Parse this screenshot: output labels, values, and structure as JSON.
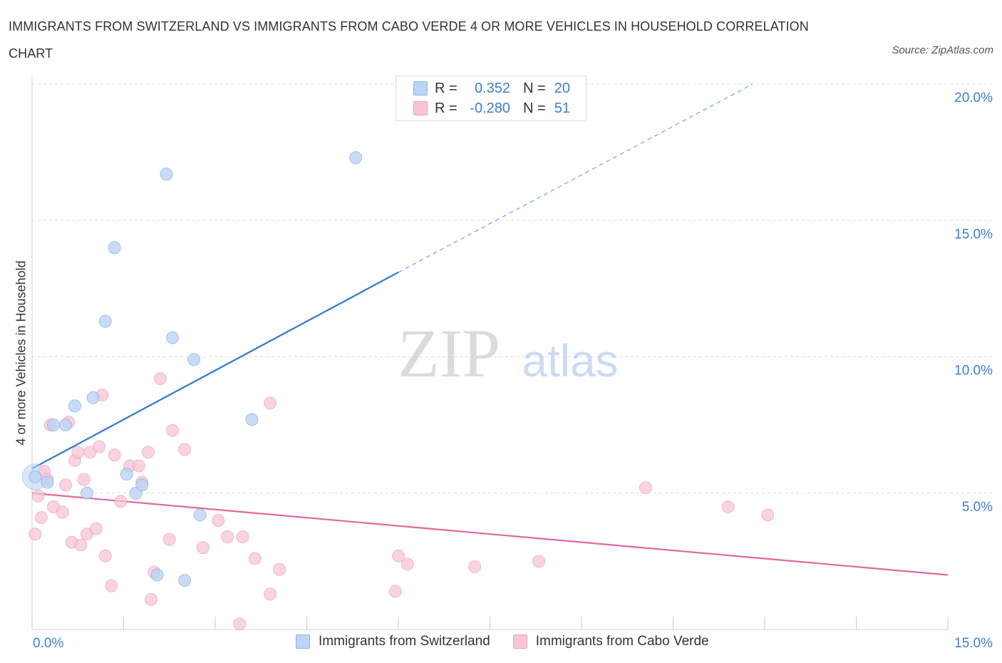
{
  "title": "IMMIGRANTS FROM SWITZERLAND VS IMMIGRANTS FROM CABO VERDE 4 OR MORE VEHICLES IN HOUSEHOLD CORRELATION CHART",
  "source": "Source: ZipAtlas.com",
  "watermark": {
    "zip": "ZIP",
    "atlas": "atlas"
  },
  "colors": {
    "blue_fill": "#bcd4f6",
    "blue_stroke": "#8db3e6",
    "blue_line": "#2f78d0",
    "pink_fill": "#f8c5d4",
    "pink_stroke": "#eca2b9",
    "pink_line": "#e3699a",
    "grid": "#d8dde6",
    "tick_label": "#3b7fd0"
  },
  "legend_top": [
    {
      "r_label": "R =",
      "r_value": "0.352",
      "n_label": "N =",
      "n_value": "20"
    },
    {
      "r_label": "R =",
      "r_value": "-0.280",
      "n_label": "N =",
      "n_value": "51"
    }
  ],
  "legend_bottom": [
    "Immigrants from Switzerland",
    "Immigrants from Cabo Verde"
  ],
  "chart_data": {
    "type": "scatter",
    "title": "IMMIGRANTS FROM SWITZERLAND VS IMMIGRANTS FROM CABO VERDE 4 OR MORE VEHICLES IN HOUSEHOLD CORRELATION CHART",
    "xlabel": "",
    "ylabel": "4 or more Vehicles in Household",
    "xlim": [
      0,
      15
    ],
    "ylim": [
      0,
      20
    ],
    "x_tick_labels": [
      "0.0%",
      "15.0%"
    ],
    "y_tick_labels": [
      "5.0%",
      "10.0%",
      "15.0%",
      "20.0%"
    ],
    "y_ticks": [
      5,
      10,
      15,
      20
    ],
    "legend_position": "bottom",
    "grid": true,
    "series": [
      {
        "name": "Immigrants from Switzerland",
        "color": "#bcd4f6",
        "R": 0.352,
        "N": 20,
        "trend": {
          "x0": 0,
          "y0": 5.9,
          "x1": 6.0,
          "y1": 13.1,
          "dashed_to_x": 11.8,
          "dashed_to_y": 20.0
        },
        "points": [
          [
            0.05,
            5.6
          ],
          [
            0.25,
            5.4
          ],
          [
            0.35,
            7.5
          ],
          [
            0.55,
            7.5
          ],
          [
            0.7,
            8.2
          ],
          [
            0.9,
            5.0
          ],
          [
            1.0,
            8.5
          ],
          [
            1.2,
            11.3
          ],
          [
            1.35,
            14.0
          ],
          [
            1.55,
            5.7
          ],
          [
            1.7,
            5.0
          ],
          [
            1.8,
            5.3
          ],
          [
            2.05,
            2.0
          ],
          [
            2.2,
            16.7
          ],
          [
            2.3,
            10.7
          ],
          [
            2.5,
            1.8
          ],
          [
            2.65,
            9.9
          ],
          [
            2.75,
            4.2
          ],
          [
            3.6,
            7.7
          ],
          [
            5.3,
            17.3
          ]
        ]
      },
      {
        "name": "Immigrants from Cabo Verde",
        "color": "#f8c5d4",
        "R": -0.28,
        "N": 51,
        "trend": {
          "x0": 0,
          "y0": 5.0,
          "x1": 15.0,
          "y1": 2.0
        },
        "points": [
          [
            0.05,
            3.5
          ],
          [
            0.1,
            4.9
          ],
          [
            0.15,
            4.1
          ],
          [
            0.2,
            5.8
          ],
          [
            0.25,
            5.5
          ],
          [
            0.3,
            7.5
          ],
          [
            0.35,
            4.5
          ],
          [
            0.5,
            4.3
          ],
          [
            0.55,
            5.3
          ],
          [
            0.6,
            7.6
          ],
          [
            0.65,
            3.2
          ],
          [
            0.7,
            6.2
          ],
          [
            0.75,
            6.5
          ],
          [
            0.8,
            3.1
          ],
          [
            0.85,
            5.5
          ],
          [
            0.9,
            3.5
          ],
          [
            0.95,
            6.5
          ],
          [
            1.05,
            3.7
          ],
          [
            1.1,
            6.7
          ],
          [
            1.15,
            8.6
          ],
          [
            1.2,
            2.7
          ],
          [
            1.3,
            1.6
          ],
          [
            1.35,
            6.4
          ],
          [
            1.45,
            4.7
          ],
          [
            1.6,
            6.0
          ],
          [
            1.75,
            6.0
          ],
          [
            1.8,
            5.4
          ],
          [
            1.9,
            6.5
          ],
          [
            1.95,
            1.1
          ],
          [
            2.0,
            2.1
          ],
          [
            2.1,
            9.2
          ],
          [
            2.25,
            3.3
          ],
          [
            2.3,
            7.3
          ],
          [
            2.5,
            6.6
          ],
          [
            2.8,
            3.0
          ],
          [
            3.05,
            4.0
          ],
          [
            3.2,
            3.4
          ],
          [
            3.45,
            3.4
          ],
          [
            3.4,
            0.2
          ],
          [
            3.65,
            2.6
          ],
          [
            3.9,
            8.3
          ],
          [
            4.05,
            2.2
          ],
          [
            3.9,
            1.3
          ],
          [
            6.0,
            2.7
          ],
          [
            5.95,
            1.4
          ],
          [
            6.15,
            2.4
          ],
          [
            7.25,
            2.3
          ],
          [
            8.3,
            2.5
          ],
          [
            10.05,
            5.2
          ],
          [
            11.4,
            4.5
          ],
          [
            12.05,
            4.2
          ]
        ]
      }
    ]
  }
}
